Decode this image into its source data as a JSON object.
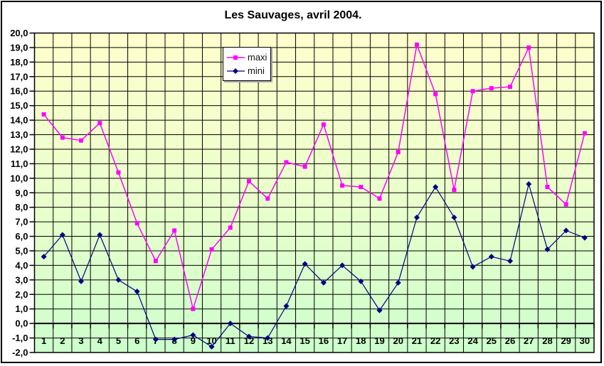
{
  "chart": {
    "title": "Les Sauvages, avril 2004.",
    "legend": {
      "items": [
        {
          "label": "maxi",
          "color": "#ff00ff",
          "marker": "square"
        },
        {
          "label": "mini",
          "color": "#000080",
          "marker": "diamond"
        }
      ]
    }
  },
  "chart_data": {
    "type": "line",
    "title": "Les Sauvages, avril 2004.",
    "xlabel": "",
    "ylabel": "",
    "x": [
      1,
      2,
      3,
      4,
      5,
      6,
      7,
      8,
      9,
      10,
      11,
      12,
      13,
      14,
      15,
      16,
      17,
      18,
      19,
      20,
      21,
      22,
      23,
      24,
      25,
      26,
      27,
      28,
      29,
      30
    ],
    "series": [
      {
        "name": "maxi",
        "color": "#ff00ff",
        "marker": "square",
        "values": [
          14.4,
          12.8,
          12.6,
          13.8,
          10.4,
          6.9,
          4.3,
          6.4,
          1.0,
          5.1,
          6.6,
          9.8,
          8.6,
          11.1,
          10.8,
          13.7,
          9.5,
          9.4,
          8.6,
          11.8,
          19.2,
          15.8,
          9.2,
          16.0,
          16.2,
          16.3,
          19.0,
          9.4,
          8.2,
          13.1
        ]
      },
      {
        "name": "mini",
        "color": "#000080",
        "marker": "diamond",
        "values": [
          4.6,
          6.1,
          2.9,
          6.1,
          3.0,
          2.2,
          -1.1,
          -1.1,
          -0.8,
          -1.6,
          0.0,
          -0.9,
          -1.0,
          1.2,
          4.1,
          2.8,
          4.0,
          2.9,
          0.9,
          2.8,
          7.3,
          9.4,
          7.3,
          3.9,
          4.6,
          4.3,
          9.6,
          5.1,
          6.4,
          5.9
        ]
      }
    ],
    "ylim": [
      -2.0,
      20.0
    ],
    "ytick_step": 1.0,
    "decimal_separator": ",",
    "grid": true,
    "axis_cross_y": 0.0,
    "legend_position": "inside-top-left",
    "plot_bg_gradient": [
      "#ffffcc",
      "#ccffcc"
    ],
    "gridline_color": "#000000",
    "text_color": "#000000"
  }
}
